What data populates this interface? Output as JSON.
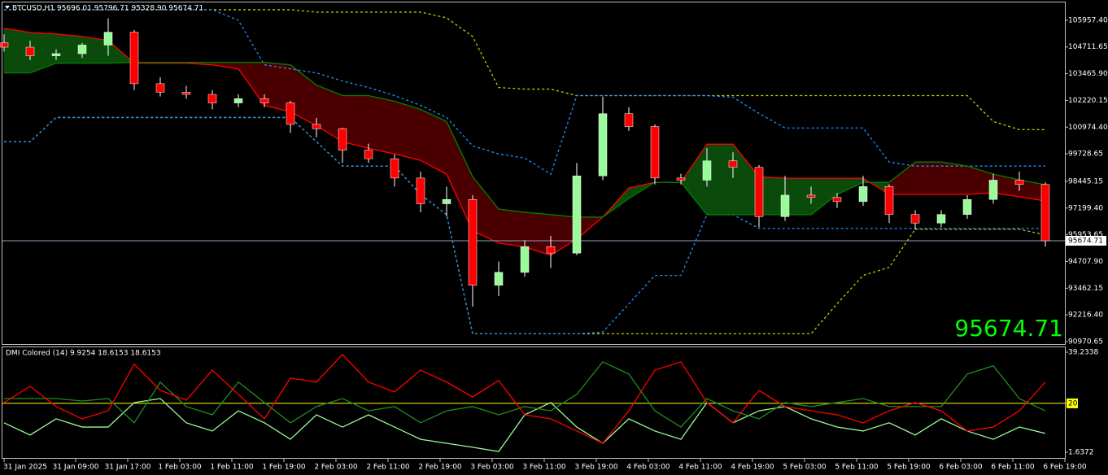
{
  "chart_data": [
    {
      "type": "candlestick",
      "title": "BTCUSD,H1  95696.01 95796.71 95328.90 95674.71",
      "background": "#000000",
      "x": [
        0,
        4,
        8,
        12,
        16,
        20,
        24,
        28,
        32,
        36,
        40,
        44,
        48,
        52,
        56,
        60,
        64,
        68,
        72,
        76,
        80,
        84,
        88,
        92,
        96,
        100,
        104,
        108,
        112,
        116,
        120,
        124,
        128,
        132,
        136,
        140,
        144,
        148,
        152,
        156,
        160
      ],
      "xlim": [
        0,
        163
      ],
      "xticks": [
        {
          "value": 0,
          "label": "31 Jan 2025"
        },
        {
          "value": 11,
          "label": "31 Jan 09:00"
        },
        {
          "value": 19,
          "label": "31 Jan 17:00"
        },
        {
          "value": 27,
          "label": "1 Feb 03:00"
        },
        {
          "value": 35,
          "label": "1 Feb 11:00"
        },
        {
          "value": 43,
          "label": "1 Feb 19:00"
        },
        {
          "value": 51,
          "label": "2 Feb 03:00"
        },
        {
          "value": 59,
          "label": "2 Feb 11:00"
        },
        {
          "value": 67,
          "label": "2 Feb 19:00"
        },
        {
          "value": 75,
          "label": "3 Feb 03:00"
        },
        {
          "value": 83,
          "label": "3 Feb 11:00"
        },
        {
          "value": 91,
          "label": "3 Feb 19:00"
        },
        {
          "value": 99,
          "label": "4 Feb 03:00"
        },
        {
          "value": 107,
          "label": "4 Feb 11:00"
        },
        {
          "value": 115,
          "label": "4 Feb 19:00"
        },
        {
          "value": 123,
          "label": "5 Feb 03:00"
        },
        {
          "value": 131,
          "label": "5 Feb 11:00"
        },
        {
          "value": 139,
          "label": "5 Feb 19:00"
        },
        {
          "value": 147,
          "label": "6 Feb 03:00"
        },
        {
          "value": 155,
          "label": "6 Feb 11:00"
        },
        {
          "value": 163,
          "label": "6 Feb 19:00"
        }
      ],
      "ylim": [
        90857,
        106750
      ],
      "yticks": [
        {
          "value": 105957.4,
          "label": "105957.40"
        },
        104711.65,
        {
          "value": 103465.9,
          "label": "103465.90"
        },
        102220.15,
        {
          "value": 100974.4,
          "label": "100974.40"
        },
        99728.65,
        98445.15,
        {
          "value": 97199.4,
          "label": "97199.40"
        },
        95953.65,
        {
          "value": 94707.9,
          "label": "94707.90"
        },
        93462.15,
        {
          "value": 92216.4,
          "label": "92216.40"
        },
        90970.65
      ],
      "candles": {
        "up_color": "#98fb98",
        "down_color": "#ff0000",
        "wick_color": "#ffffff",
        "open": [
          104900,
          104700,
          104300,
          104400,
          104800,
          105400,
          103000,
          102600,
          102500,
          102100,
          102300,
          102100,
          101100,
          100900,
          99900,
          99500,
          98600,
          97400,
          97600,
          93600,
          94200,
          95400,
          95100,
          98700,
          101600,
          101000,
          98600,
          98500,
          99400,
          99100,
          96800,
          97800,
          97700,
          97500,
          98200,
          96900,
          96500,
          96900,
          97600,
          98500,
          98300
        ],
        "high": [
          105300,
          105000,
          104600,
          104900,
          106050,
          105500,
          103300,
          102900,
          102700,
          102500,
          102500,
          102200,
          101400,
          100950,
          100200,
          99700,
          98900,
          98200,
          97800,
          94700,
          95700,
          95900,
          99300,
          102400,
          101900,
          101100,
          98800,
          100000,
          99800,
          99200,
          98700,
          98200,
          97900,
          98700,
          98300,
          97100,
          97100,
          97800,
          98800,
          98900,
          98400
        ],
        "low": [
          104500,
          104100,
          104100,
          104200,
          104300,
          102700,
          102400,
          102300,
          101800,
          101900,
          101900,
          100700,
          100500,
          99300,
          99300,
          98200,
          97000,
          96800,
          92600,
          93100,
          94000,
          94400,
          95000,
          98500,
          100800,
          98300,
          98300,
          98200,
          98600,
          96300,
          96600,
          97400,
          97200,
          97300,
          96500,
          96200,
          96300,
          96700,
          97400,
          98000,
          95400
        ],
        "close": [
          104700,
          104300,
          104400,
          104800,
          105400,
          103000,
          102600,
          102500,
          102100,
          102300,
          102100,
          101100,
          100900,
          99900,
          99500,
          98600,
          97400,
          97600,
          93600,
          94200,
          95400,
          95100,
          98700,
          101600,
          101000,
          98600,
          98500,
          99400,
          99100,
          96800,
          97800,
          97700,
          97500,
          98200,
          96900,
          96500,
          96900,
          97600,
          98500,
          98300,
          95674.71
        ]
      },
      "cloud": {
        "up_fill": "#0a4a0a",
        "down_fill": "#4a0000",
        "span_a": {
          "color": "#ff0000",
          "values": [
            105579,
            105390,
            105315,
            105201,
            105013,
            103955,
            103955,
            103955,
            103879,
            103690,
            101990,
            101688,
            101046,
            100290,
            99988,
            99723,
            99421,
            98779,
            96134,
            95568,
            95379,
            95001,
            95756,
            96777,
            98137,
            98401,
            98401,
            100177,
            100177,
            98666,
            98590,
            98590,
            98590,
            98590,
            97835,
            97835,
            97835,
            97835,
            97910,
            97721,
            97532
          ]
        },
        "span_b": {
          "color": "#008000",
          "values": [
            103501,
            103501,
            103955,
            103955,
            103955,
            103992,
            103992,
            103992,
            103992,
            103992,
            103992,
            103879,
            102935,
            102444,
            102444,
            102179,
            101801,
            101234,
            98666,
            97155,
            97004,
            96890,
            96777,
            96777,
            97646,
            98401,
            98401,
            96890,
            96890,
            96890,
            96890,
            96890,
            97835,
            98401,
            98401,
            99346,
            99346,
            99157,
            98779,
            98515,
            98288
          ]
        }
      },
      "channels": [
        {
          "color": "#c8c800",
          "values": [
            106448,
            106448,
            106448,
            106448,
            106448,
            106448,
            106448,
            106448,
            106448,
            106448,
            106448,
            106448,
            106335,
            106335,
            106335,
            106335,
            106335,
            106070,
            105201,
            102821,
            102746,
            102746,
            102444,
            102444,
            102444,
            102444,
            102444,
            102444,
            102444,
            102444,
            102444,
            102444,
            102444,
            102444,
            102444,
            102444,
            102444,
            102444,
            101234,
            100857,
            100857
          ]
        },
        {
          "color": "#1e90ff",
          "values": [
            106448,
            106448,
            106448,
            106448,
            106448,
            106448,
            106448,
            106448,
            106448,
            105957,
            103879,
            103690,
            103501,
            103123,
            102821,
            102444,
            101990,
            101423,
            100101,
            99723,
            99534,
            98779,
            102444,
            102444,
            102444,
            102444,
            102444,
            102444,
            102368,
            101613,
            100932,
            100932,
            100932,
            100932,
            99346,
            99157,
            99157,
            99157,
            99157,
            99157,
            99157
          ]
        },
        {
          "color": "#c8c800",
          "values": [
            100290,
            100290,
            101423,
            101423,
            101423,
            101423,
            101423,
            101423,
            101423,
            101423,
            101423,
            101423,
            100290,
            99157,
            99157,
            99157,
            97835,
            96890,
            91336,
            91336,
            91336,
            91336,
            91336,
            91336,
            91336,
            91336,
            91336,
            91336,
            91336,
            91336,
            91336,
            91336,
            92734,
            94056,
            94434,
            96210,
            96210,
            96210,
            96210,
            96210,
            95946
          ]
        },
        {
          "color": "#1e90ff",
          "values": [
            100290,
            100290,
            101423,
            101423,
            101423,
            101423,
            101423,
            101423,
            101423,
            101423,
            101423,
            101423,
            100290,
            99157,
            99157,
            99157,
            97835,
            96890,
            91336,
            91336,
            91336,
            91336,
            91336,
            91412,
            92734,
            94056,
            94056,
            96890,
            96890,
            96248,
            96248,
            96248,
            96248,
            96248,
            96248,
            96248,
            96248,
            96248,
            96248,
            96248,
            96248
          ]
        }
      ],
      "current_price": 95674.71,
      "current_price_color": "#00ff00",
      "price_line_color": "#8aa0b8"
    },
    {
      "type": "line",
      "title": "DMI Colored (14) 9.9254 18.6153 18.6153",
      "ylim": [
        -0.5,
        40.76
      ],
      "yticks": [
        39.2338,
        20,
        1.6372
      ],
      "level": 20,
      "level_color": "#ffff00",
      "series": [
        {
          "color": "#98fb98",
          "values": [
            12.7,
            8.1,
            14.2,
            11.1,
            11.1,
            20.3,
            21.8,
            12.7,
            9.6,
            17.2,
            12.7,
            6.5,
            15.7,
            11.1,
            15.7,
            11.1,
            6.5,
            5.0,
            3.5,
            1.9,
            15.7,
            20.3,
            11.1,
            5.0,
            14.2,
            9.6,
            6.5,
            20.3,
            12.7,
            17.2,
            18.8,
            14.2,
            11.1,
            9.6,
            12.7,
            8.1,
            14.2,
            9.6,
            6.5,
            11.1,
            8.7
          ]
        },
        {
          "color": "#1f8f1f",
          "values": [
            21.8,
            21.8,
            21.8,
            20.9,
            21.8,
            12.7,
            28.0,
            18.8,
            15.7,
            28.0,
            20.3,
            12.7,
            18.8,
            21.8,
            17.2,
            18.8,
            12.7,
            17.2,
            18.8,
            15.7,
            18.8,
            17.2,
            23.4,
            35.6,
            31.0,
            17.2,
            11.1,
            21.8,
            17.2,
            14.2,
            20.3,
            18.8,
            20.3,
            21.8,
            18.8,
            18.8,
            18.8,
            31.0,
            34.1,
            21.8,
            17.2
          ]
        },
        {
          "color": "#ff0000",
          "values": [
            20.3,
            26.4,
            18.8,
            14.2,
            17.2,
            34.7,
            24.9,
            21.2,
            32.5,
            23.4,
            14.2,
            29.5,
            28.0,
            38.4,
            28.0,
            24.3,
            32.5,
            28.0,
            22.4,
            28.6,
            15.7,
            14.2,
            9.6,
            5.0,
            17.2,
            32.5,
            35.6,
            20.3,
            12.7,
            24.9,
            18.8,
            17.2,
            15.7,
            12.7,
            17.2,
            20.3,
            17.2,
            9.6,
            11.1,
            17.2,
            28.0
          ]
        }
      ]
    }
  ]
}
